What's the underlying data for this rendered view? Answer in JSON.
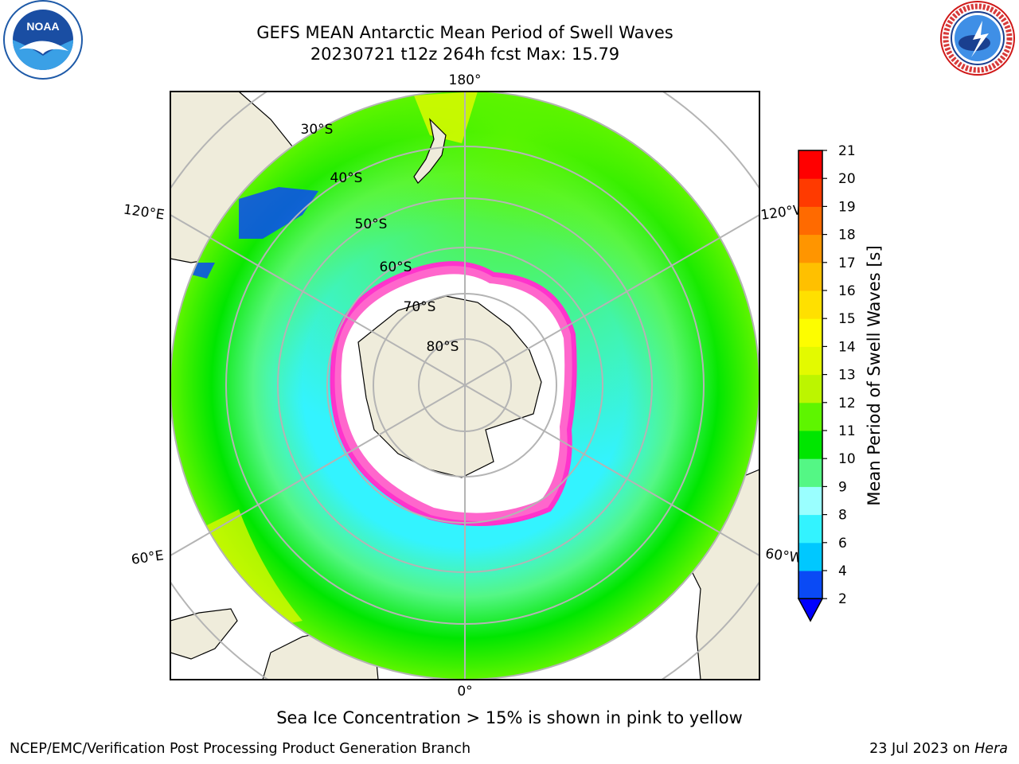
{
  "header": {
    "title_line1": "GEFS MEAN Antarctic Mean Period of Swell Waves",
    "title_line2": "20230721 t12z 264h fcst   Max: 15.79"
  },
  "logos": {
    "left": {
      "name": "NOARA-logo",
      "text": "NOAA",
      "ring_text": "NATIONAL OCEANIC AND ATMOSPHERIC ADMINISTRATION · U.S. DEPARTMENT OF COMMERCE"
    },
    "right": {
      "name": "nws-logo",
      "ring_text": "NATIONAL WEATHER SERVICE"
    }
  },
  "map": {
    "projection": "south-polar-stereographic",
    "longitude_labels": {
      "top": "180°",
      "bottom": "0°",
      "left_upper": "120°E",
      "left_lower": "60°E",
      "right_upper": "120°W",
      "right_lower": "60°W"
    },
    "latitude_labels": [
      "30°S",
      "40°S",
      "50°S",
      "60°S",
      "70°S",
      "80°S"
    ],
    "colors": {
      "land": "#efecdb",
      "ocean_mask": "#ffffff",
      "grid": "#b4b4b4",
      "coast": "#000000"
    }
  },
  "colorbar": {
    "label": "Mean Period of Swell Waves [s]",
    "ticks": [
      "2",
      "4",
      "6",
      "8",
      "9",
      "10",
      "11",
      "12",
      "13",
      "14",
      "15",
      "16",
      "17",
      "18",
      "19",
      "20",
      "21"
    ],
    "colors": [
      "#0a4af5",
      "#00c8ff",
      "#33f3ff",
      "#9affff",
      "#54f785",
      "#00e600",
      "#5ef500",
      "#bcf500",
      "#e3fa00",
      "#fdfd00",
      "#ffe000",
      "#ffc000",
      "#ff9500",
      "#ff6a00",
      "#ff3a00",
      "#ff0000"
    ],
    "extend_color": "#0000ff"
  },
  "ice_note": "Sea Ice Concentration > 15% is shown in pink to yellow",
  "footer": {
    "left": "NCEP/EMC/Verification Post Processing Product Generation Branch",
    "right_date": "23 Jul 2023 on ",
    "right_machine": "Hera"
  }
}
